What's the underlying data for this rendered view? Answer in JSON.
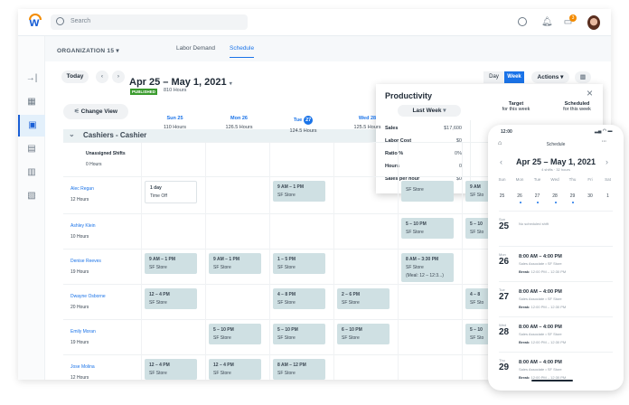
{
  "topbar": {
    "search_placeholder": "Search",
    "notification_count": "3"
  },
  "subbar": {
    "org": "ORGANIZATION 15",
    "tabs": [
      "Labor Demand",
      "Schedule"
    ],
    "active_tab": "Schedule"
  },
  "toolbar": {
    "today": "Today",
    "title": "Apr 25 – May 1, 2021",
    "status": "PUBLISHED",
    "hours": "810 Hours",
    "day": "Day",
    "week": "Week",
    "actions": "Actions",
    "change_view": "Change View"
  },
  "days": [
    {
      "label": "Sun 25",
      "hours": "110 Hours"
    },
    {
      "label": "Mon 26",
      "hours": "126.5 Hours"
    },
    {
      "label": "Tue",
      "num": "27",
      "hours": "124.5 Hours"
    },
    {
      "label": "Wed 28",
      "hours": "125.5 Hours"
    }
  ],
  "group": "Cashiers - Cashier",
  "unassigned": {
    "label": "Unassigned Shifts",
    "hours": "0 Hours"
  },
  "employees": [
    {
      "name": "Alec Regan",
      "hours": "12 Hours",
      "shifts": [
        {
          "day": 0,
          "time": "1 day",
          "place": "Time Off",
          "off": true
        },
        {
          "day": 2,
          "time": "9 AM – 1 PM",
          "place": "SF Store"
        },
        {
          "day": 4,
          "time": "",
          "place": "SF Store"
        },
        {
          "day": 5,
          "time": "9 AM",
          "place": "SF Sto"
        }
      ]
    },
    {
      "name": "Ashley Klein",
      "hours": "10 Hours",
      "shifts": [
        {
          "day": 4,
          "time": "5 – 10 PM",
          "place": "SF Store"
        },
        {
          "day": 5,
          "time": "5 – 10",
          "place": "SF Sto"
        }
      ]
    },
    {
      "name": "Denise Reeves",
      "hours": "19 Hours",
      "shifts": [
        {
          "day": 0,
          "time": "9 AM – 1 PM",
          "place": "SF Store"
        },
        {
          "day": 1,
          "time": "9 AM – 1 PM",
          "place": "SF Store"
        },
        {
          "day": 2,
          "time": "1 – 5 PM",
          "place": "SF Store"
        },
        {
          "day": 4,
          "time": "8 AM – 3:30 PM",
          "place": "SF Store",
          "note": "(Meal: 12 – 12:3...)"
        }
      ]
    },
    {
      "name": "Dwayne Osborne",
      "hours": "20 Hours",
      "shifts": [
        {
          "day": 0,
          "time": "12 – 4 PM",
          "place": "SF Store"
        },
        {
          "day": 2,
          "time": "4 – 8 PM",
          "place": "SF Store"
        },
        {
          "day": 3,
          "time": "2 – 6 PM",
          "place": "SF Store"
        },
        {
          "day": 5,
          "time": "4 – 8",
          "place": "SF Sto"
        }
      ]
    },
    {
      "name": "Emily Moran",
      "hours": "19 Hours",
      "shifts": [
        {
          "day": 1,
          "time": "5 – 10 PM",
          "place": "SF Store"
        },
        {
          "day": 2,
          "time": "5 – 10 PM",
          "place": "SF Store"
        },
        {
          "day": 3,
          "time": "6 – 10 PM",
          "place": "SF Store"
        },
        {
          "day": 5,
          "time": "5 – 10",
          "place": "SF Sto"
        }
      ]
    },
    {
      "name": "Jose Molina",
      "hours": "12 Hours",
      "shifts": [
        {
          "day": 0,
          "time": "12 – 4 PM",
          "place": "SF Store"
        },
        {
          "day": 1,
          "time": "12 – 4 PM",
          "place": "SF Store"
        },
        {
          "day": 2,
          "time": "8 AM – 12 PM",
          "place": "SF Store"
        }
      ]
    }
  ],
  "productivity": {
    "title": "Productivity",
    "period": "Last Week",
    "target": "Target",
    "scheduled": "Scheduled",
    "for_week": "for this week",
    "rows": [
      {
        "label": "Sales",
        "value": "$17,600"
      },
      {
        "label": "Labor Cost",
        "value": "$0"
      },
      {
        "label": "Ratio %",
        "value": "0%"
      },
      {
        "label": "Hours",
        "value": "0"
      },
      {
        "label": "Sales per hour",
        "value": "$0"
      }
    ]
  },
  "phone": {
    "time": "12:00",
    "title": "Schedule",
    "range": "Apr 25 – May 1, 2021",
    "summary": "4 shifts · 32 hours",
    "weekdays": [
      "Sun",
      "Mon",
      "Tue",
      "Wed",
      "Thu",
      "Fri",
      "Sat"
    ],
    "dates": [
      "25",
      "26",
      "27",
      "28",
      "29",
      "30",
      "1"
    ],
    "list": [
      {
        "dw": "Sun",
        "dn": "25",
        "empty": "No scheduled shift"
      },
      {
        "dw": "Mon",
        "dn": "26",
        "time": "8:00 AM – 4:00 PM",
        "role": "Sales Associate • SF Store",
        "break_label": "Break:",
        "break": "12:00 PM – 12:30 PM"
      },
      {
        "dw": "Tue",
        "dn": "27",
        "time": "8:00 AM – 4:00 PM",
        "role": "Sales Associate • SF Store",
        "break_label": "Break:",
        "break": "12:00 PM – 12:30 PM"
      },
      {
        "dw": "Wed",
        "dn": "28",
        "time": "8:00 AM – 4:00 PM",
        "role": "Sales Associate • SF Store",
        "break_label": "Break:",
        "break": "12:00 PM – 12:30 PM"
      },
      {
        "dw": "Thu",
        "dn": "29",
        "time": "8:00 AM – 4:00 PM",
        "role": "Sales Associate • SF Store",
        "break_label": "Break:",
        "break": "12:00 PM – 12:30 PM"
      }
    ]
  },
  "colors": {
    "accent": "#1a73e8",
    "published": "#3a9b2d",
    "shift": "#cfe0e3",
    "badge": "#f38b00"
  }
}
